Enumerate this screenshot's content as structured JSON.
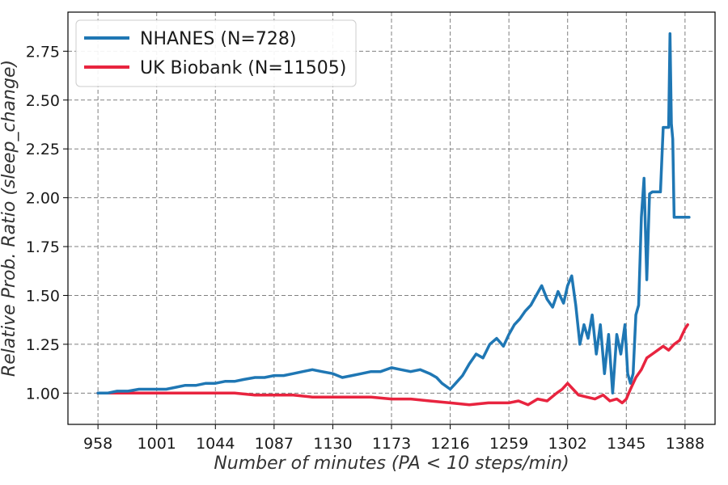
{
  "chart_data": {
    "type": "line",
    "title": "",
    "xlabel": "Number of minutes (PA < 10 steps/min)",
    "ylabel": "Relative Prob. Ratio (sleep_change)",
    "xlim": [
      936,
      1410
    ],
    "ylim": [
      0.84,
      2.95
    ],
    "x_ticks": [
      958,
      1001,
      1044,
      1087,
      1130,
      1173,
      1216,
      1259,
      1302,
      1345,
      1388
    ],
    "y_ticks": [
      1.0,
      1.25,
      1.5,
      1.75,
      2.0,
      2.25,
      2.5,
      2.75
    ],
    "y_tick_labels": [
      "1.00",
      "1.25",
      "1.50",
      "1.75",
      "2.00",
      "2.25",
      "2.50",
      "2.75"
    ],
    "grid": true,
    "legend_position": "top-left",
    "series": [
      {
        "name": "NHANES (N=728)",
        "color": "#1f77b4",
        "x": [
          958,
          965,
          972,
          980,
          988,
          995,
          1001,
          1008,
          1015,
          1022,
          1030,
          1037,
          1044,
          1051,
          1058,
          1065,
          1073,
          1080,
          1087,
          1094,
          1101,
          1108,
          1115,
          1122,
          1130,
          1137,
          1144,
          1151,
          1158,
          1165,
          1173,
          1180,
          1187,
          1194,
          1201,
          1206,
          1210,
          1216,
          1220,
          1225,
          1230,
          1235,
          1240,
          1245,
          1250,
          1255,
          1259,
          1263,
          1267,
          1271,
          1275,
          1279,
          1283,
          1287,
          1291,
          1295,
          1299,
          1302,
          1305,
          1308,
          1311,
          1314,
          1317,
          1320,
          1323,
          1326,
          1329,
          1332,
          1335,
          1338,
          1341,
          1344,
          1346,
          1348,
          1350,
          1352,
          1354,
          1356,
          1358,
          1360,
          1362,
          1364,
          1366,
          1368,
          1370,
          1372,
          1374,
          1376,
          1377,
          1378,
          1379,
          1380,
          1382,
          1384,
          1386,
          1388,
          1391
        ],
        "y": [
          1.0,
          1.0,
          1.01,
          1.01,
          1.02,
          1.02,
          1.02,
          1.02,
          1.03,
          1.04,
          1.04,
          1.05,
          1.05,
          1.06,
          1.06,
          1.07,
          1.08,
          1.08,
          1.09,
          1.09,
          1.1,
          1.11,
          1.12,
          1.11,
          1.1,
          1.08,
          1.09,
          1.1,
          1.11,
          1.11,
          1.13,
          1.12,
          1.11,
          1.12,
          1.1,
          1.08,
          1.05,
          1.02,
          1.05,
          1.09,
          1.15,
          1.2,
          1.18,
          1.25,
          1.28,
          1.24,
          1.3,
          1.35,
          1.38,
          1.42,
          1.45,
          1.5,
          1.55,
          1.48,
          1.44,
          1.52,
          1.46,
          1.55,
          1.6,
          1.45,
          1.25,
          1.35,
          1.28,
          1.4,
          1.2,
          1.35,
          1.1,
          1.3,
          1.0,
          1.3,
          1.2,
          1.35,
          1.1,
          1.05,
          1.1,
          1.4,
          1.45,
          1.9,
          2.1,
          1.58,
          2.02,
          2.03,
          2.03,
          2.03,
          2.03,
          2.36,
          2.36,
          2.36,
          2.84,
          2.38,
          2.3,
          1.9,
          1.9,
          1.9,
          1.9,
          1.9,
          1.9
        ]
      },
      {
        "name": "UK Biobank (N=11505)",
        "color": "#e8243f",
        "x": [
          958,
          970,
          985,
          1001,
          1015,
          1030,
          1044,
          1058,
          1073,
          1087,
          1101,
          1115,
          1130,
          1144,
          1158,
          1173,
          1187,
          1201,
          1216,
          1230,
          1244,
          1259,
          1266,
          1273,
          1280,
          1287,
          1294,
          1298,
          1302,
          1306,
          1310,
          1316,
          1322,
          1328,
          1333,
          1338,
          1342,
          1345,
          1348,
          1352,
          1356,
          1360,
          1364,
          1368,
          1372,
          1376,
          1380,
          1384,
          1388,
          1390
        ],
        "y": [
          1.0,
          1.0,
          1.0,
          1.0,
          1.0,
          1.0,
          1.0,
          1.0,
          0.99,
          0.99,
          0.99,
          0.98,
          0.98,
          0.98,
          0.98,
          0.97,
          0.97,
          0.96,
          0.95,
          0.94,
          0.95,
          0.95,
          0.96,
          0.94,
          0.97,
          0.96,
          1.0,
          1.02,
          1.05,
          1.02,
          0.99,
          0.98,
          0.97,
          0.99,
          0.96,
          0.97,
          0.95,
          0.97,
          1.02,
          1.08,
          1.12,
          1.18,
          1.2,
          1.22,
          1.24,
          1.22,
          1.25,
          1.27,
          1.33,
          1.35
        ]
      }
    ]
  }
}
